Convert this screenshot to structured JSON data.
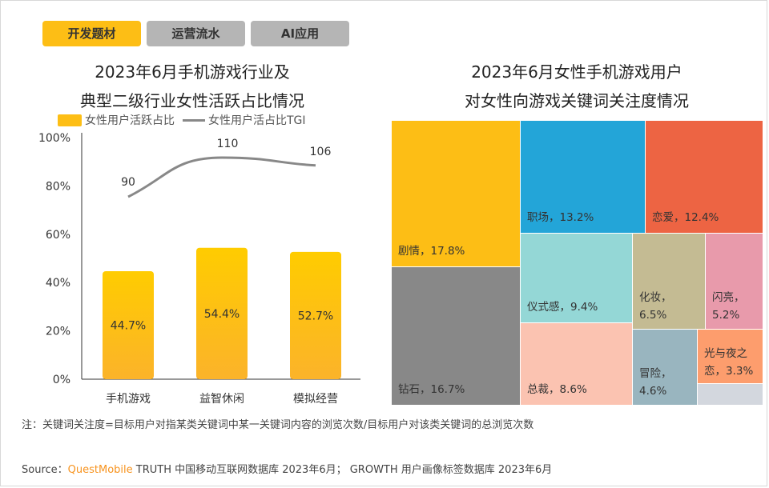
{
  "tabs": [
    {
      "label": "开发题材",
      "active": true
    },
    {
      "label": "运营流水"
    },
    {
      "label": "AI应用"
    }
  ],
  "left_title": [
    "2023年6月手机游戏行业及",
    "典型二级行业女性活跃占比情况"
  ],
  "right_title": [
    "2023年6月女性手机游戏用户",
    "对女性向游戏关键词关注度情况"
  ],
  "chart_data": [
    {
      "type": "bar",
      "categories": [
        "手机游戏",
        "益智休闲",
        "模拟经营"
      ],
      "series": [
        {
          "name": "女性用户活跃占比",
          "values": [
            44.7,
            54.4,
            52.7
          ],
          "labels": [
            "44.7%",
            "54.4%",
            "52.7%"
          ],
          "color": "#fdbe15"
        },
        {
          "name": "女性用户活占比TGI",
          "type": "line",
          "values": [
            90,
            110,
            106
          ],
          "color": "#888888"
        }
      ],
      "yticks": [
        "0%",
        "20%",
        "40%",
        "60%",
        "80%",
        "100%"
      ],
      "ylim": [
        0,
        100
      ],
      "legend": "top"
    },
    {
      "type": "treemap",
      "items": [
        {
          "name": "剧情",
          "value": 17.8,
          "label": "剧情，17.8%",
          "color": "#fdbe15"
        },
        {
          "name": "钻石",
          "value": 16.7,
          "label": "钻石，16.7%",
          "color": "#888888"
        },
        {
          "name": "职场",
          "value": 13.2,
          "label": "职场，13.2%",
          "color": "#23a5d8"
        },
        {
          "name": "恋爱",
          "value": 12.4,
          "label": "恋爱，12.4%",
          "color": "#ed6443"
        },
        {
          "name": "仪式感",
          "value": 9.4,
          "label": "仪式感，9.4%",
          "color": "#94d7d6"
        },
        {
          "name": "总裁",
          "value": 8.6,
          "label": "总裁，8.6%",
          "color": "#fbc3b1"
        },
        {
          "name": "化妆",
          "value": 6.5,
          "label": "化妆，\n6.5%",
          "color": "#c4bb93"
        },
        {
          "name": "闪亮",
          "value": 5.2,
          "label": "闪亮，\n5.2%",
          "color": "#e89aab"
        },
        {
          "name": "冒险",
          "value": 4.6,
          "label": "冒险，\n4.6%",
          "color": "#99b5bf"
        },
        {
          "name": "光与夜之恋",
          "value": 3.3,
          "label": "光与夜之\n恋，3.3%",
          "color": "#fd9d6d"
        },
        {
          "name": "",
          "value": null,
          "label": "",
          "color": "#d3d7de"
        }
      ]
    }
  ],
  "note": "注：关键词关注度=目标用户对指某类关键词中某一关键词内容的浏览次数/目标用户对该类关键词的总浏览次数",
  "source": {
    "prefix": "Source：",
    "brand": "QuestMobile",
    "text": " TRUTH 中国移动互联网数据库 2023年6月； GROWTH 用户画像标签数据库 2023年6月"
  }
}
